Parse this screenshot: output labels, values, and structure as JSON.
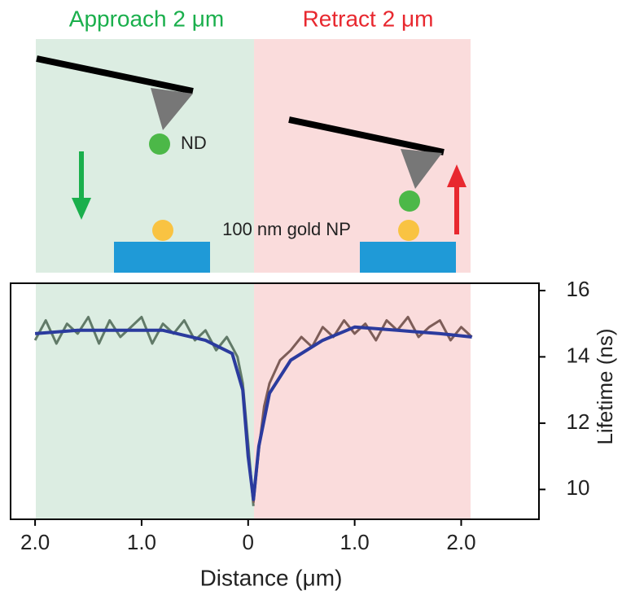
{
  "schematic": {
    "approach_title": "Approach 2 μm",
    "retract_title": "Retract 2 μm",
    "nd_label": "ND",
    "gold_label": "100 nm gold NP"
  },
  "chart_data": {
    "type": "line",
    "xlabel": "Distance (μm)",
    "ylabel": "Lifetime (ns)",
    "xlim": [
      -2.23,
      2.73
    ],
    "ylim": [
      9.1,
      16.22
    ],
    "xticks": [
      {
        "value": -2,
        "label": "2.0"
      },
      {
        "value": -1,
        "label": "1.0"
      },
      0,
      {
        "value": 1,
        "label": "1.0"
      },
      {
        "value": 2,
        "label": "2.0"
      }
    ],
    "yticks": [
      10,
      12,
      14,
      16
    ],
    "series": [
      {
        "color": "#617a68",
        "x": [
          -2.0,
          -1.9,
          -1.8,
          -1.7,
          -1.6,
          -1.5,
          -1.4,
          -1.3,
          -1.2,
          -1.1,
          -1.0,
          -0.9,
          -0.8,
          -0.7,
          -0.6,
          -0.5,
          -0.4,
          -0.3,
          -0.2,
          -0.15,
          -0.1,
          -0.05,
          0,
          0.05
        ],
        "values": [
          14.5,
          15.1,
          14.4,
          15.0,
          14.7,
          15.2,
          14.4,
          15.1,
          14.6,
          14.9,
          15.2,
          14.4,
          15.0,
          14.7,
          15.1,
          14.5,
          14.8,
          14.2,
          14.6,
          14.3,
          14.0,
          13.2,
          11.4,
          9.5
        ]
      },
      {
        "color": "#7d5d58",
        "x": [
          0.05,
          0.1,
          0.15,
          0.2,
          0.3,
          0.4,
          0.5,
          0.6,
          0.7,
          0.8,
          0.9,
          1.0,
          1.1,
          1.2,
          1.3,
          1.4,
          1.5,
          1.6,
          1.7,
          1.8,
          1.9,
          2.0,
          2.1
        ],
        "values": [
          9.6,
          11.2,
          12.5,
          13.2,
          13.9,
          14.2,
          14.6,
          14.3,
          14.9,
          14.6,
          15.1,
          14.7,
          15.0,
          14.5,
          15.1,
          14.8,
          15.2,
          14.6,
          14.9,
          15.1,
          14.5,
          14.9,
          14.6
        ]
      },
      {
        "color": "#2b3b9e",
        "x": [
          -2,
          -1.6,
          -1.2,
          -0.8,
          -0.4,
          -0.15,
          -0.05,
          0,
          0.05,
          0.1,
          0.2,
          0.4,
          0.7,
          1.0,
          1.4,
          1.8,
          2.1
        ],
        "values": [
          14.7,
          14.8,
          14.8,
          14.8,
          14.5,
          14.1,
          13.0,
          11.0,
          9.7,
          11.3,
          12.9,
          13.9,
          14.5,
          14.9,
          14.8,
          14.7,
          14.6
        ]
      }
    ]
  }
}
